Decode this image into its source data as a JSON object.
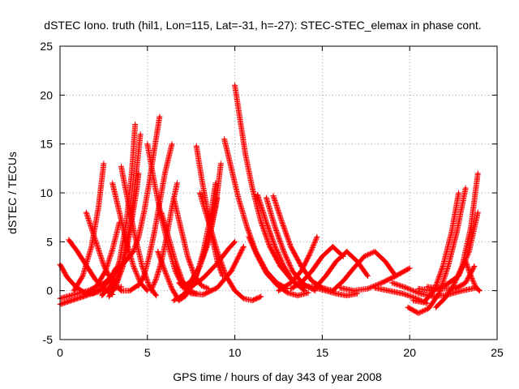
{
  "chart_data": {
    "type": "scatter",
    "title": "dSTEC Iono. truth (hil1, Lon=115, Lat=-31, h=-27): STEC-STEC_elemax in phase cont.",
    "xlabel": "GPS time / hours of day 343 of year 2008",
    "ylabel": "dSTEC  / TECUs",
    "xlim": [
      0,
      25
    ],
    "ylim": [
      -5,
      25
    ],
    "xticks": [
      0,
      5,
      10,
      15,
      20,
      25
    ],
    "yticks": [
      -5,
      0,
      5,
      10,
      15,
      20,
      25
    ],
    "grid": true,
    "legend": "none",
    "marker": "+",
    "color": "#ff0000",
    "series": [
      {
        "x": [
          0.0,
          0.4,
          0.9,
          1.4,
          1.9,
          2.4,
          2.8,
          3.2
        ],
        "y": [
          2.7,
          1.4,
          0.4,
          -0.2,
          -0.3,
          0.2,
          1.0,
          2.3
        ]
      },
      {
        "x": [
          0.0,
          0.5,
          1.0,
          1.5,
          2.0,
          2.5,
          3.0,
          3.5
        ],
        "y": [
          -1.4,
          -1.1,
          -0.8,
          -0.5,
          -0.2,
          0.0,
          0.2,
          0.4
        ]
      },
      {
        "x": [
          0.0,
          0.8,
          1.6,
          2.4,
          3.0,
          3.6,
          4.2
        ],
        "y": [
          -0.8,
          -0.4,
          0.0,
          0.6,
          1.5,
          2.7,
          4.0
        ]
      },
      {
        "x": [
          0.5,
          1.0,
          1.5,
          2.0,
          2.5,
          3.0
        ],
        "y": [
          5.2,
          4.0,
          2.6,
          1.2,
          0.2,
          -0.4
        ]
      },
      {
        "x": [
          1.5,
          2.0,
          2.5,
          3.0,
          3.5,
          4.0,
          4.5
        ],
        "y": [
          8.0,
          5.3,
          2.6,
          0.8,
          0.0,
          0.0,
          0.6
        ]
      },
      {
        "x": [
          0.8,
          1.3,
          1.8,
          2.2,
          2.5
        ],
        "y": [
          0.0,
          1.5,
          4.5,
          8.5,
          13.0
        ]
      },
      {
        "x": [
          1.6,
          2.1,
          2.6,
          3.0,
          3.4
        ],
        "y": [
          -0.2,
          0.5,
          2.0,
          4.2,
          7.0
        ]
      },
      {
        "x": [
          3.0,
          3.4,
          3.8,
          4.2,
          4.6,
          5.0
        ],
        "y": [
          11.0,
          8.0,
          5.0,
          2.5,
          0.8,
          0.0
        ]
      },
      {
        "x": [
          3.5,
          3.9,
          4.3,
          4.7,
          5.1,
          5.5
        ],
        "y": [
          12.7,
          9.0,
          5.5,
          2.5,
          0.5,
          -0.5
        ]
      },
      {
        "x": [
          2.4,
          2.9,
          3.4,
          3.8,
          4.1,
          4.3
        ],
        "y": [
          -0.5,
          0.5,
          3.0,
          7.0,
          12.0,
          17.0
        ]
      },
      {
        "x": [
          2.8,
          3.2,
          3.6,
          4.0,
          4.3,
          4.6
        ],
        "y": [
          0.0,
          0.8,
          3.0,
          6.5,
          11.0,
          16.0
        ]
      },
      {
        "x": [
          2.8,
          3.2,
          3.6,
          4.0,
          4.4,
          4.5
        ],
        "y": [
          -0.6,
          0.5,
          2.5,
          6.0,
          10.5,
          12.0
        ]
      },
      {
        "x": [
          4.2,
          4.5,
          4.8,
          5.1,
          5.4,
          5.7
        ],
        "y": [
          4.0,
          5.5,
          8.0,
          11.0,
          14.5,
          17.8
        ]
      },
      {
        "x": [
          4.5,
          4.8,
          5.1,
          5.4,
          5.7,
          6.0,
          6.4
        ],
        "y": [
          0.5,
          1.5,
          3.5,
          6.0,
          9.0,
          12.0,
          15.0
        ]
      },
      {
        "x": [
          5.2,
          5.5,
          5.8,
          6.1,
          6.4,
          6.7
        ],
        "y": [
          0.0,
          1.2,
          3.0,
          5.5,
          8.5,
          11.0
        ]
      },
      {
        "x": [
          5.0,
          5.4,
          5.8,
          6.2,
          6.6,
          7.0
        ],
        "y": [
          15.0,
          11.0,
          7.5,
          4.5,
          2.0,
          0.5
        ]
      },
      {
        "x": [
          5.8,
          6.2,
          6.6,
          7.0,
          7.4,
          7.8
        ],
        "y": [
          8.0,
          5.5,
          3.0,
          1.0,
          0.0,
          -0.3
        ]
      },
      {
        "x": [
          5.6,
          6.0,
          6.4,
          6.8,
          7.2,
          7.6
        ],
        "y": [
          4.0,
          2.0,
          0.2,
          -1.0,
          -0.5,
          1.0
        ]
      },
      {
        "x": [
          6.5,
          6.9,
          7.3,
          7.7,
          8.1,
          8.5
        ],
        "y": [
          9.5,
          6.5,
          3.5,
          1.5,
          0.5,
          0.2
        ]
      },
      {
        "x": [
          6.5,
          7.0,
          7.5,
          8.0,
          8.5,
          9.0
        ],
        "y": [
          -1.0,
          -0.5,
          0.5,
          2.5,
          5.5,
          9.5
        ]
      },
      {
        "x": [
          7.4,
          7.8,
          8.2,
          8.6,
          8.9
        ],
        "y": [
          0.0,
          1.5,
          4.0,
          7.5,
          11.0
        ]
      },
      {
        "x": [
          7.8,
          8.1,
          8.4,
          8.7,
          9.0,
          9.3
        ],
        "y": [
          14.8,
          11.5,
          8.5,
          5.5,
          3.0,
          1.5
        ]
      },
      {
        "x": [
          7.0,
          7.5,
          8.0,
          8.5,
          8.9,
          9.2
        ],
        "y": [
          0.3,
          1.0,
          2.5,
          5.0,
          8.5,
          13.0
        ]
      },
      {
        "x": [
          8.0,
          8.5,
          9.0,
          9.5,
          10.0,
          10.5,
          11.0,
          11.5
        ],
        "y": [
          10.0,
          7.0,
          4.0,
          1.5,
          0.0,
          -0.8,
          -1.0,
          -0.6
        ]
      },
      {
        "x": [
          6.8,
          7.5,
          8.2,
          9.0,
          9.8,
          10.5
        ],
        "y": [
          0.8,
          -0.3,
          -0.4,
          0.3,
          2.0,
          4.5
        ]
      },
      {
        "x": [
          7.5,
          8.2,
          9.0,
          9.6,
          10.0
        ],
        "y": [
          0.4,
          1.3,
          2.8,
          4.2,
          5.0
        ]
      },
      {
        "x": [
          9.4,
          9.8,
          10.2,
          10.7,
          11.2,
          11.8,
          12.4,
          13.0
        ],
        "y": [
          15.5,
          12.5,
          9.5,
          6.5,
          4.0,
          2.0,
          0.8,
          0.2
        ]
      },
      {
        "x": [
          10.0,
          10.3,
          10.6,
          11.0,
          11.5,
          12.0,
          12.6,
          13.3,
          14.0
        ],
        "y": [
          21.0,
          17.5,
          14.0,
          10.5,
          7.0,
          4.5,
          2.5,
          1.0,
          0.3
        ]
      },
      {
        "x": [
          11.3,
          11.8,
          12.3,
          12.8,
          13.3,
          14.0
        ],
        "y": [
          9.8,
          7.0,
          4.5,
          2.5,
          1.0,
          0.0
        ]
      },
      {
        "x": [
          11.8,
          12.3,
          12.8,
          13.3,
          13.9,
          14.6
        ],
        "y": [
          9.5,
          6.5,
          4.0,
          2.0,
          0.7,
          0.0
        ]
      },
      {
        "x": [
          12.2,
          12.7,
          13.2,
          13.8,
          14.4,
          15.0,
          15.6
        ],
        "y": [
          9.7,
          7.0,
          4.5,
          2.5,
          1.0,
          0.3,
          0.0
        ]
      },
      {
        "x": [
          10.8,
          11.3,
          11.8,
          12.4,
          13.0,
          13.6,
          14.2
        ],
        "y": [
          5.5,
          3.5,
          1.8,
          0.6,
          -0.2,
          -0.5,
          -0.2
        ]
      },
      {
        "x": [
          12.5,
          13.2,
          13.8,
          14.3,
          14.7
        ],
        "y": [
          0.0,
          0.8,
          2.0,
          3.8,
          5.5
        ]
      },
      {
        "x": [
          13.2,
          13.8,
          14.4,
          15.0,
          15.6,
          16.2
        ],
        "y": [
          0.2,
          0.8,
          2.0,
          3.5,
          4.5,
          3.5
        ]
      },
      {
        "x": [
          14.0,
          14.6,
          15.2,
          15.8,
          16.4,
          17.0
        ],
        "y": [
          0.5,
          0.3,
          0.0,
          -0.3,
          -0.5,
          -0.3
        ]
      },
      {
        "x": [
          14.6,
          15.2,
          15.8,
          16.4,
          17.0,
          17.6
        ],
        "y": [
          0.3,
          1.5,
          3.0,
          4.0,
          3.0,
          1.5
        ]
      },
      {
        "x": [
          15.6,
          16.2,
          16.8,
          17.4,
          18.0,
          18.6,
          19.2
        ],
        "y": [
          0.0,
          1.0,
          2.3,
          3.5,
          4.0,
          3.0,
          1.5
        ]
      },
      {
        "x": [
          16.0,
          16.8,
          17.6,
          18.4,
          19.2,
          20.0
        ],
        "y": [
          0.3,
          0.0,
          0.2,
          0.8,
          1.5,
          2.3
        ]
      },
      {
        "x": [
          18.0,
          18.8,
          19.6,
          20.4,
          21.0
        ],
        "y": [
          0.3,
          0.0,
          -0.3,
          -0.8,
          -1.3
        ]
      },
      {
        "x": [
          19.0,
          19.8,
          20.6,
          21.4,
          22.2,
          23.0,
          23.8
        ],
        "y": [
          0.8,
          0.3,
          -0.3,
          -0.6,
          -0.4,
          0.0,
          0.3
        ]
      },
      {
        "x": [
          19.9,
          20.5,
          21.1,
          21.7,
          22.2,
          22.7,
          23.2
        ],
        "y": [
          -1.7,
          -2.3,
          -1.8,
          -0.2,
          2.5,
          6.0,
          10.5
        ]
      },
      {
        "x": [
          20.2,
          20.8,
          21.4,
          21.9,
          22.4,
          22.8
        ],
        "y": [
          -1.0,
          -1.2,
          0.0,
          2.5,
          6.0,
          10.0
        ]
      },
      {
        "x": [
          21.5,
          22.0,
          22.5,
          23.0,
          23.5,
          23.9
        ],
        "y": [
          -1.7,
          -0.8,
          0.5,
          2.5,
          6.5,
          12.0
        ]
      },
      {
        "x": [
          20.5,
          21.2,
          22.0,
          22.8,
          23.4,
          23.9
        ],
        "y": [
          0.2,
          0.0,
          0.5,
          1.5,
          4.0,
          8.0
        ]
      },
      {
        "x": [
          21.0,
          21.8,
          22.6,
          23.2,
          23.7
        ],
        "y": [
          0.4,
          0.2,
          0.2,
          0.8,
          2.5
        ]
      },
      {
        "x": [
          23.2,
          23.5,
          23.8,
          24.0
        ],
        "y": [
          3.0,
          1.5,
          0.3,
          0.0
        ]
      }
    ]
  }
}
